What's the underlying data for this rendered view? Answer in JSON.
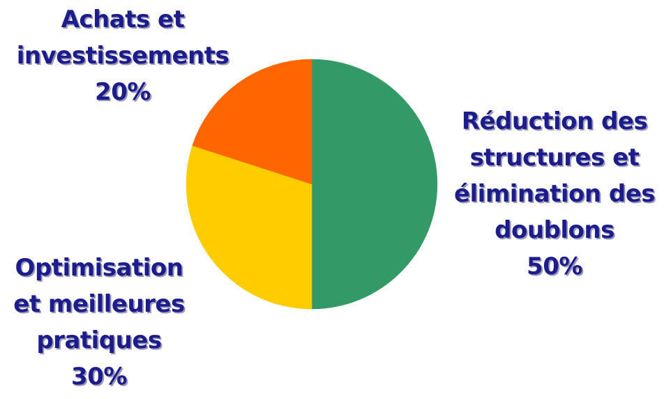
{
  "chart_data": {
    "type": "pie",
    "slices": [
      {
        "label_lines": [
          "Réduction des",
          "structures et",
          "élimination des",
          "doublons"
        ],
        "value": 50,
        "value_label": "50%",
        "color": "#339966"
      },
      {
        "label_lines": [
          "Optimisation",
          "et meilleures",
          "pratiques"
        ],
        "value": 30,
        "value_label": "30%",
        "color": "#ffcc00"
      },
      {
        "label_lines": [
          "Achats et",
          "investissements"
        ],
        "value": 20,
        "value_label": "20%",
        "color": "#ff6600"
      }
    ],
    "start": "top",
    "direction": "clockwise",
    "legend": "none",
    "label_color": "#1c1c8c"
  }
}
